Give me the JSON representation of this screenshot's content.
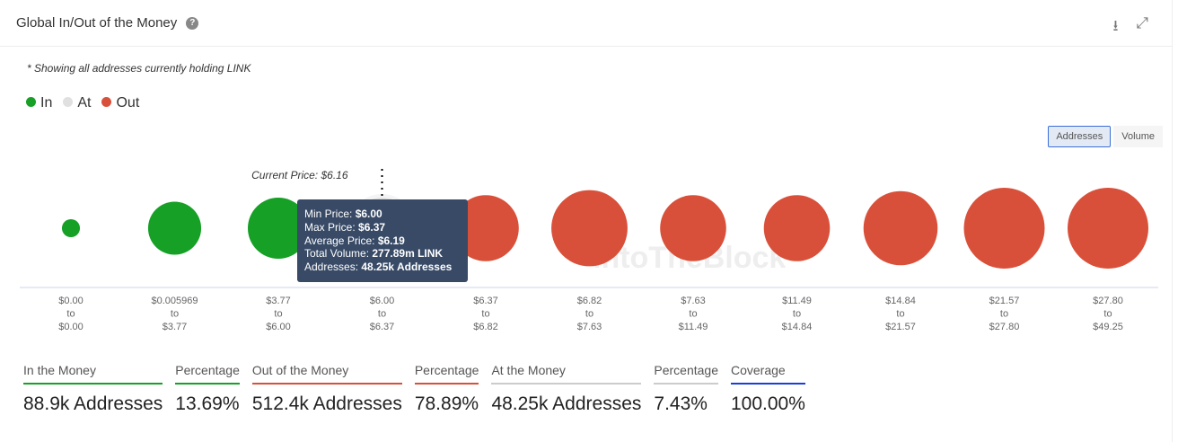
{
  "header": {
    "title": "Global In/Out of the Money",
    "help_icon": "?"
  },
  "note": "* Showing all addresses currently holding LINK",
  "legend": [
    {
      "label": "In",
      "color": "#16a026"
    },
    {
      "label": "At",
      "color": "#e0e0e0"
    },
    {
      "label": "Out",
      "color": "#d9503a"
    }
  ],
  "toggle": {
    "addresses": "Addresses",
    "volume": "Volume"
  },
  "chart_data": {
    "type": "bubble",
    "current_price_label": "Current Price: $6.16",
    "value_note": "Bubble sizes (addresses, thousands) estimated from bubble area; only At bucket labeled",
    "buckets": [
      {
        "from": "$0.00",
        "to": "$0.00",
        "status": "in",
        "addresses_k": 4.2
      },
      {
        "from": "$0.005969",
        "to": "$3.77",
        "status": "in",
        "addresses_k": 36.45
      },
      {
        "from": "$3.77",
        "to": "$6.00",
        "status": "in",
        "addresses_k": 48.25
      },
      {
        "from": "$6.00",
        "to": "$6.37",
        "status": "at",
        "addresses_k": 48.25
      },
      {
        "from": "$6.37",
        "to": "$6.82",
        "status": "out",
        "addresses_k": 56.5
      },
      {
        "from": "$6.82",
        "to": "$7.63",
        "status": "out",
        "addresses_k": 75.1
      },
      {
        "from": "$7.63",
        "to": "$11.49",
        "status": "out",
        "addresses_k": 56.5
      },
      {
        "from": "$11.49",
        "to": "$14.84",
        "status": "out",
        "addresses_k": 56.5
      },
      {
        "from": "$14.84",
        "to": "$21.57",
        "status": "out",
        "addresses_k": 71.1
      },
      {
        "from": "$21.57",
        "to": "$27.80",
        "status": "out",
        "addresses_k": 91.6
      },
      {
        "from": "$27.80",
        "to": "$49.25",
        "status": "out",
        "addresses_k": 105.2
      }
    ],
    "to_word": "to",
    "watermark": "IntoTheBlock"
  },
  "tooltip": {
    "rows": [
      [
        "Min Price: ",
        "$6.00"
      ],
      [
        "Max Price: ",
        "$6.37"
      ],
      [
        "Average Price: ",
        "$6.19"
      ],
      [
        "Total Volume: ",
        "277.89m LINK"
      ],
      [
        "Addresses: ",
        "48.25k Addresses"
      ]
    ]
  },
  "stats": [
    {
      "label": "In the Money",
      "value": "88.9k Addresses",
      "color": "#16a026"
    },
    {
      "label": "Percentage",
      "value": "13.69%",
      "color": "#16a026"
    },
    {
      "label": "Out of the Money",
      "value": "512.4k Addresses",
      "color": "#d9503a"
    },
    {
      "label": "Percentage",
      "value": "78.89%",
      "color": "#d9503a"
    },
    {
      "label": "At the Money",
      "value": "48.25k Addresses",
      "color": "#cccccc"
    },
    {
      "label": "Percentage",
      "value": "7.43%",
      "color": "#cccccc"
    },
    {
      "label": "Coverage",
      "value": "100.00%",
      "color": "#1a3fd8"
    }
  ]
}
